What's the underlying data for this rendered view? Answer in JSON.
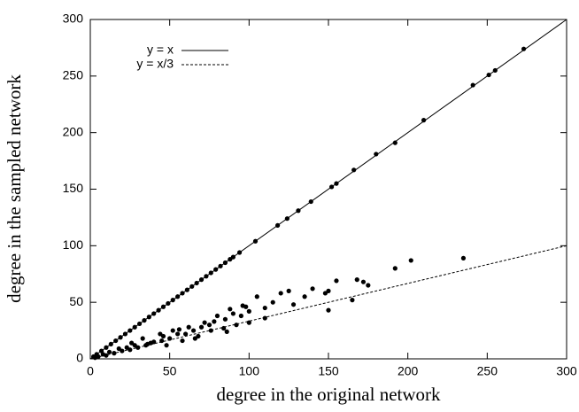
{
  "chart_data": {
    "type": "scatter",
    "xlabel": "degree in the original network",
    "ylabel": "degree in the sampled network",
    "xlim": [
      0,
      300
    ],
    "ylim": [
      0,
      300
    ],
    "xticks": [
      0,
      50,
      100,
      150,
      200,
      250,
      300
    ],
    "yticks": [
      0,
      50,
      100,
      150,
      200,
      250,
      300
    ],
    "legend": "top-left",
    "lines": [
      {
        "name": "y = x",
        "color": "#000000",
        "dashed": false,
        "x": [
          0,
          300
        ],
        "y": [
          0,
          300
        ]
      },
      {
        "name": "y = x/3",
        "color": "#000000",
        "dashed": true,
        "x": [
          0,
          300
        ],
        "y": [
          0,
          100
        ]
      }
    ],
    "points": {
      "color": "#000000",
      "x": [
        273,
        255,
        251,
        241,
        210,
        192,
        180,
        166,
        155,
        152,
        139,
        131,
        124,
        118,
        104,
        94,
        90,
        88,
        85,
        82,
        79,
        76,
        73,
        70,
        67,
        64,
        61,
        58,
        55,
        52,
        49,
        46,
        43,
        40,
        37,
        34,
        31,
        28,
        25,
        22,
        19,
        16,
        13,
        10,
        7,
        4,
        2,
        235,
        202,
        192,
        175,
        172,
        168,
        165,
        155,
        150,
        150,
        148,
        140,
        135,
        128,
        125,
        120,
        115,
        110,
        105,
        100,
        95,
        90,
        85,
        80,
        75,
        70,
        65,
        60,
        55,
        50,
        45,
        40,
        35,
        30,
        25,
        20,
        15,
        10,
        5,
        98,
        92,
        88,
        84,
        78,
        72,
        68,
        62,
        58,
        52,
        48,
        44,
        38,
        33,
        28,
        23,
        18,
        12,
        8,
        3,
        110,
        100,
        96,
        86,
        76,
        66,
        56,
        46,
        36,
        26
      ],
      "y": [
        274,
        255,
        251,
        242,
        211,
        191,
        181,
        167,
        155,
        152,
        139,
        131,
        124,
        118,
        104,
        94,
        90,
        88,
        85,
        82,
        79,
        76,
        73,
        70,
        67,
        64,
        61,
        58,
        55,
        52,
        49,
        46,
        43,
        40,
        37,
        34,
        31,
        28,
        25,
        22,
        19,
        16,
        13,
        10,
        7,
        4,
        2,
        89,
        87,
        80,
        65,
        68,
        70,
        52,
        69,
        60,
        43,
        58,
        62,
        55,
        48,
        60,
        58,
        50,
        45,
        55,
        42,
        38,
        40,
        35,
        38,
        30,
        28,
        25,
        22,
        22,
        18,
        16,
        15,
        12,
        10,
        8,
        7,
        5,
        3,
        2,
        46,
        30,
        44,
        27,
        33,
        32,
        20,
        28,
        16,
        25,
        12,
        22,
        14,
        18,
        12,
        10,
        9,
        6,
        4,
        1,
        36,
        32,
        47,
        24,
        25,
        18,
        26,
        20,
        13,
        14
      ]
    }
  }
}
